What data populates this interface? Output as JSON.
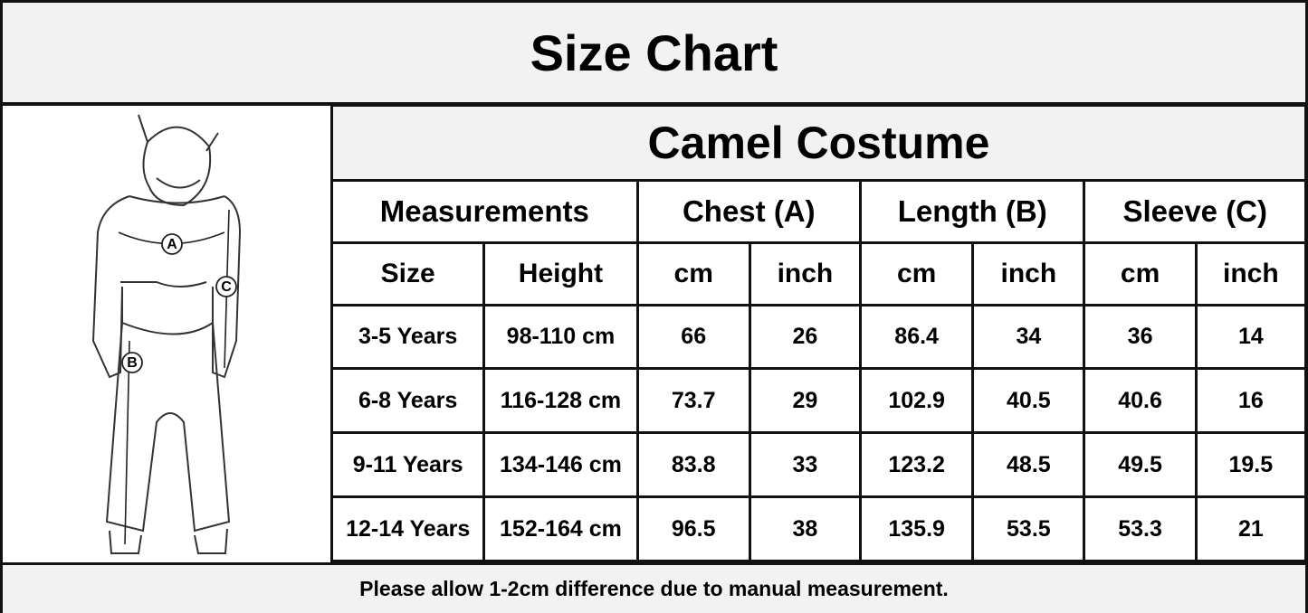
{
  "header": {
    "title": "Size Chart"
  },
  "figure": {
    "labels": [
      "A",
      "B",
      "C"
    ]
  },
  "table": {
    "title": "Camel Costume",
    "groups": [
      "Measurements",
      "Chest (A)",
      "Length (B)",
      "Sleeve (C)"
    ],
    "columns": [
      "Size",
      "Height",
      "cm",
      "inch",
      "cm",
      "inch",
      "cm",
      "inch"
    ],
    "rows": [
      [
        "3-5 Years",
        "98-110 cm",
        "66",
        "26",
        "86.4",
        "34",
        "36",
        "14"
      ],
      [
        "6-8 Years",
        "116-128 cm",
        "73.7",
        "29",
        "102.9",
        "40.5",
        "40.6",
        "16"
      ],
      [
        "9-11 Years",
        "134-146 cm",
        "83.8",
        "33",
        "123.2",
        "48.5",
        "49.5",
        "19.5"
      ],
      [
        "12-14 Years",
        "152-164 cm",
        "96.5",
        "38",
        "135.9",
        "53.5",
        "53.3",
        "21"
      ]
    ]
  },
  "footer": {
    "note": "Please allow 1-2cm difference due to manual measurement."
  }
}
